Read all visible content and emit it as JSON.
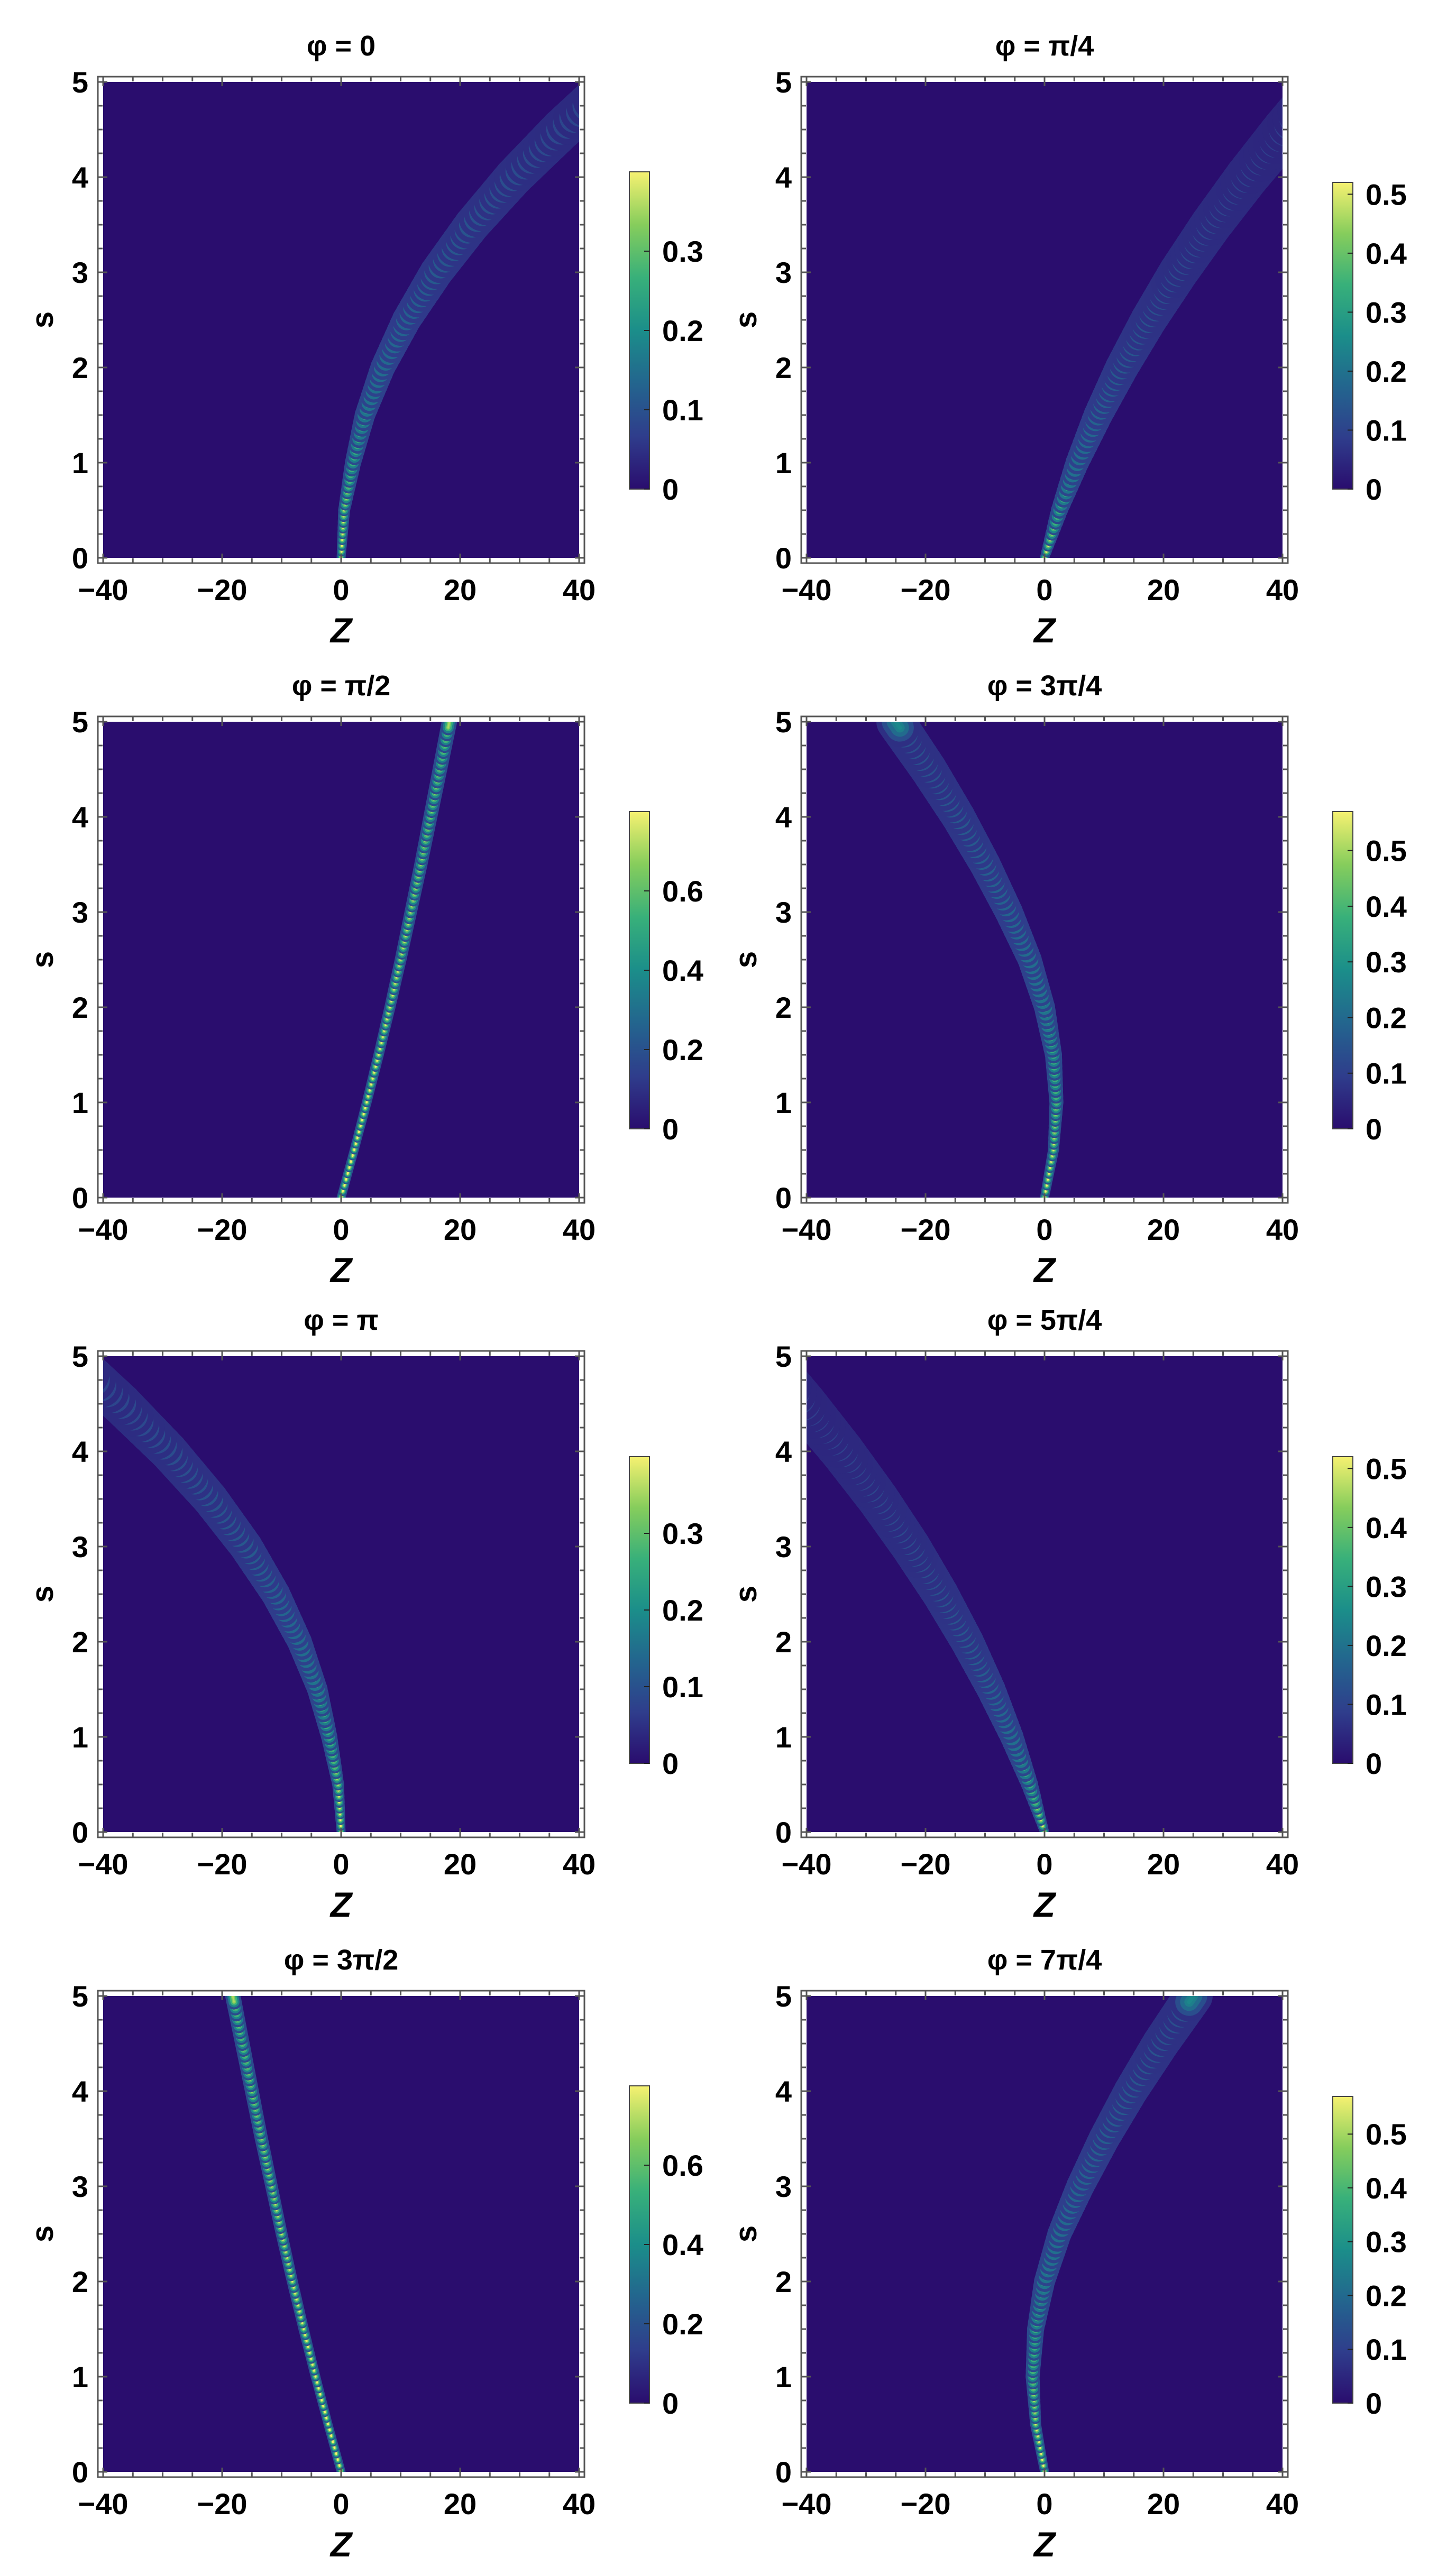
{
  "chart_data": [
    {
      "type": "heatmap",
      "title": "φ = 0",
      "xlabel": "Z",
      "ylabel": "s",
      "xlim": [
        -40,
        40
      ],
      "ylim": [
        0,
        5
      ],
      "x_ticks": [
        "−40",
        "−20",
        "0",
        "20",
        "40"
      ],
      "y_ticks": [
        "0",
        "1",
        "2",
        "3",
        "4",
        "5"
      ],
      "colorbar": {
        "max": 0.4,
        "ticks": [
          "0",
          "0.1",
          "0.2",
          "0.3"
        ]
      },
      "ridge": {
        "s": [
          0,
          0.5,
          1,
          1.5,
          2,
          2.5,
          3,
          3.5,
          4,
          4.5,
          5
        ],
        "z": [
          0,
          0.5,
          2,
          4,
          7,
          11,
          16,
          22,
          29,
          37,
          46
        ]
      },
      "peak_intensity": [
        0.4,
        0.38,
        0.35,
        0.32,
        0.29,
        0.26,
        0.23,
        0.21,
        0.19,
        0.17,
        0.15
      ]
    },
    {
      "type": "heatmap",
      "title": "φ = π/4",
      "xlabel": "Z",
      "ylabel": "s",
      "xlim": [
        -40,
        40
      ],
      "ylim": [
        0,
        5
      ],
      "x_ticks": [
        "−40",
        "−20",
        "0",
        "20",
        "40"
      ],
      "y_ticks": [
        "0",
        "1",
        "2",
        "3",
        "4",
        "5"
      ],
      "colorbar": {
        "max": 0.52,
        "ticks": [
          "0",
          "0.1",
          "0.2",
          "0.3",
          "0.4",
          "0.5"
        ]
      },
      "ridge": {
        "s": [
          0,
          0.5,
          1,
          1.5,
          2,
          2.5,
          3,
          3.5,
          4,
          4.5,
          5
        ],
        "z": [
          0,
          2.5,
          5.5,
          9,
          13,
          17.5,
          22.5,
          28,
          34,
          40.5,
          47.5
        ]
      },
      "peak_intensity": [
        0.52,
        0.45,
        0.39,
        0.34,
        0.3,
        0.27,
        0.24,
        0.22,
        0.2,
        0.18,
        0.16
      ]
    },
    {
      "type": "heatmap",
      "title": "φ = π/2",
      "xlabel": "Z",
      "ylabel": "s",
      "xlim": [
        -40,
        40
      ],
      "ylim": [
        0,
        5
      ],
      "x_ticks": [
        "−40",
        "−20",
        "0",
        "20",
        "40"
      ],
      "y_ticks": [
        "0",
        "1",
        "2",
        "3",
        "4",
        "5"
      ],
      "colorbar": {
        "max": 0.8,
        "ticks": [
          "0",
          "0.2",
          "0.4",
          "0.6"
        ]
      },
      "ridge": {
        "s": [
          0,
          0.5,
          1,
          1.5,
          2,
          2.5,
          3,
          3.5,
          4,
          4.5,
          5
        ],
        "z": [
          0,
          2.2,
          4.3,
          6.3,
          8.2,
          10.0,
          11.7,
          13.4,
          15.0,
          16.6,
          18.2
        ]
      },
      "peak_intensity": [
        0.8,
        0.8,
        0.79,
        0.78,
        0.77,
        0.76,
        0.75,
        0.74,
        0.73,
        0.72,
        0.71
      ]
    },
    {
      "type": "heatmap",
      "title": "φ = 3π/4",
      "xlabel": "Z",
      "ylabel": "s",
      "xlim": [
        -40,
        40
      ],
      "ylim": [
        0,
        5
      ],
      "x_ticks": [
        "−40",
        "−20",
        "0",
        "20",
        "40"
      ],
      "y_ticks": [
        "0",
        "1",
        "2",
        "3",
        "4",
        "5"
      ],
      "colorbar": {
        "max": 0.57,
        "ticks": [
          "0",
          "0.1",
          "0.2",
          "0.3",
          "0.4",
          "0.5"
        ]
      },
      "ridge": {
        "s": [
          0,
          0.5,
          1,
          1.5,
          2,
          2.5,
          3,
          3.5,
          4,
          4.5,
          5
        ],
        "z": [
          0,
          1.5,
          2,
          1.5,
          0,
          -2.5,
          -6,
          -10,
          -14.5,
          -19.5,
          -25
        ]
      },
      "peak_intensity": [
        0.57,
        0.55,
        0.52,
        0.49,
        0.45,
        0.42,
        0.38,
        0.35,
        0.32,
        0.29,
        0.27
      ]
    },
    {
      "type": "heatmap",
      "title": "φ = π",
      "xlabel": "Z",
      "ylabel": "s",
      "xlim": [
        -40,
        40
      ],
      "ylim": [
        0,
        5
      ],
      "x_ticks": [
        "−40",
        "−20",
        "0",
        "20",
        "40"
      ],
      "y_ticks": [
        "0",
        "1",
        "2",
        "3",
        "4",
        "5"
      ],
      "colorbar": {
        "max": 0.4,
        "ticks": [
          "0",
          "0.1",
          "0.2",
          "0.3"
        ]
      },
      "ridge": {
        "s": [
          0,
          0.5,
          1,
          1.5,
          2,
          2.5,
          3,
          3.5,
          4,
          4.5,
          5
        ],
        "z": [
          0,
          -0.5,
          -2,
          -4,
          -7,
          -11,
          -16,
          -22,
          -29,
          -37,
          -46
        ]
      },
      "peak_intensity": [
        0.4,
        0.38,
        0.35,
        0.32,
        0.29,
        0.26,
        0.23,
        0.21,
        0.19,
        0.17,
        0.15
      ]
    },
    {
      "type": "heatmap",
      "title": "φ = 5π/4",
      "xlabel": "Z",
      "ylabel": "s",
      "xlim": [
        -40,
        40
      ],
      "ylim": [
        0,
        5
      ],
      "x_ticks": [
        "−40",
        "−20",
        "0",
        "20",
        "40"
      ],
      "y_ticks": [
        "0",
        "1",
        "2",
        "3",
        "4",
        "5"
      ],
      "colorbar": {
        "max": 0.52,
        "ticks": [
          "0",
          "0.1",
          "0.2",
          "0.3",
          "0.4",
          "0.5"
        ]
      },
      "ridge": {
        "s": [
          0,
          0.5,
          1,
          1.5,
          2,
          2.5,
          3,
          3.5,
          4,
          4.5,
          5
        ],
        "z": [
          0,
          -2.5,
          -5.5,
          -9,
          -13,
          -17.5,
          -22.5,
          -28,
          -34,
          -40.5,
          -47.5
        ]
      },
      "peak_intensity": [
        0.52,
        0.45,
        0.39,
        0.34,
        0.3,
        0.27,
        0.24,
        0.22,
        0.2,
        0.18,
        0.16
      ]
    },
    {
      "type": "heatmap",
      "title": "φ = 3π/2",
      "xlabel": "Z",
      "ylabel": "s",
      "xlim": [
        -40,
        40
      ],
      "ylim": [
        0,
        5
      ],
      "x_ticks": [
        "−40",
        "−20",
        "0",
        "20",
        "40"
      ],
      "y_ticks": [
        "0",
        "1",
        "2",
        "3",
        "4",
        "5"
      ],
      "colorbar": {
        "max": 0.8,
        "ticks": [
          "0",
          "0.2",
          "0.4",
          "0.6"
        ]
      },
      "ridge": {
        "s": [
          0,
          0.5,
          1,
          1.5,
          2,
          2.5,
          3,
          3.5,
          4,
          4.5,
          5
        ],
        "z": [
          0,
          -2.2,
          -4.3,
          -6.3,
          -8.2,
          -10.0,
          -11.7,
          -13.4,
          -15.0,
          -16.6,
          -18.2
        ]
      },
      "peak_intensity": [
        0.8,
        0.8,
        0.79,
        0.78,
        0.77,
        0.76,
        0.75,
        0.74,
        0.73,
        0.72,
        0.71
      ]
    },
    {
      "type": "heatmap",
      "title": "φ = 7π/4",
      "xlabel": "Z",
      "ylabel": "s",
      "xlim": [
        -40,
        40
      ],
      "ylim": [
        0,
        5
      ],
      "x_ticks": [
        "−40",
        "−20",
        "0",
        "20",
        "40"
      ],
      "y_ticks": [
        "0",
        "1",
        "2",
        "3",
        "4",
        "5"
      ],
      "colorbar": {
        "max": 0.57,
        "ticks": [
          "0",
          "0.1",
          "0.2",
          "0.3",
          "0.4",
          "0.5"
        ]
      },
      "ridge": {
        "s": [
          0,
          0.5,
          1,
          1.5,
          2,
          2.5,
          3,
          3.5,
          4,
          4.5,
          5
        ],
        "z": [
          0,
          -1.5,
          -2,
          -1.5,
          0,
          2.5,
          6,
          10,
          14.5,
          19.5,
          25
        ]
      },
      "peak_intensity": [
        0.57,
        0.55,
        0.52,
        0.49,
        0.45,
        0.42,
        0.38,
        0.35,
        0.32,
        0.29,
        0.27
      ]
    }
  ],
  "colormap": [
    "#2a0d6e",
    "#2f3d8c",
    "#23658e",
    "#1b8e8a",
    "#38b07a",
    "#86cd5c",
    "#f6f171"
  ]
}
